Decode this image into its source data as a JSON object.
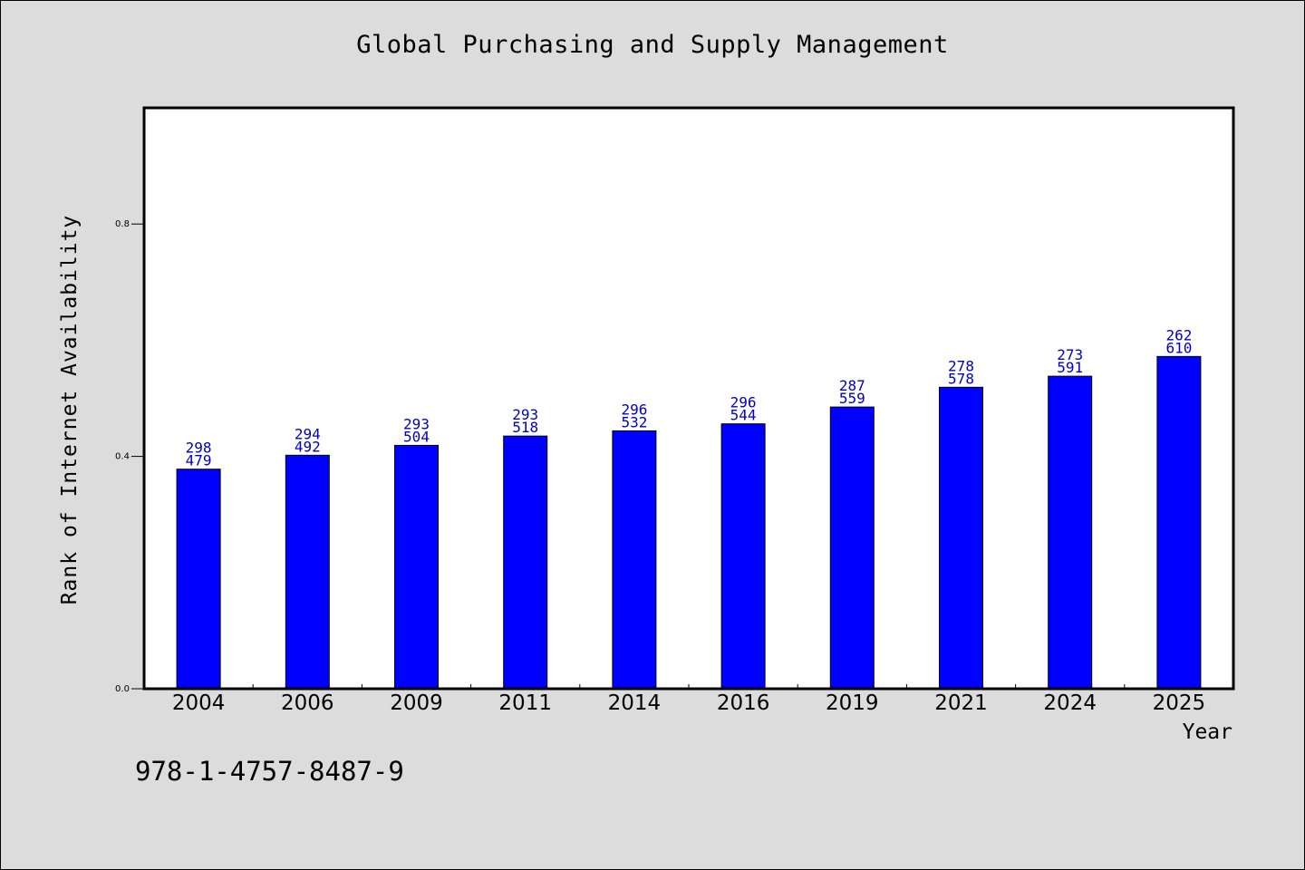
{
  "chart_data": {
    "type": "bar",
    "title": "Global Purchasing and Supply Management",
    "xlabel": "Year",
    "ylabel": "Rank of Internet Availability",
    "categories": [
      "2004",
      "2006",
      "2009",
      "2011",
      "2014",
      "2016",
      "2019",
      "2021",
      "2024",
      "2025"
    ],
    "values": [
      0.378,
      0.402,
      0.419,
      0.435,
      0.444,
      0.456,
      0.485,
      0.519,
      0.538,
      0.572
    ],
    "bar_labels_top": [
      "298",
      "294",
      "293",
      "293",
      "296",
      "296",
      "287",
      "278",
      "273",
      "262"
    ],
    "bar_labels_bottom": [
      "479",
      "492",
      "504",
      "518",
      "532",
      "544",
      "559",
      "578",
      "591",
      "610"
    ],
    "ylim": [
      0,
      1.0
    ],
    "yticks": [
      "0.0",
      "0.4",
      "0.8"
    ],
    "grid": false,
    "legend": "none",
    "colors": {
      "bar": "#0000ff",
      "bar_label": "#0000cc",
      "background": "#dcdcdc",
      "plot_area": "#ffffff"
    }
  },
  "footer": {
    "isbn": "978-1-4757-8487-9"
  }
}
